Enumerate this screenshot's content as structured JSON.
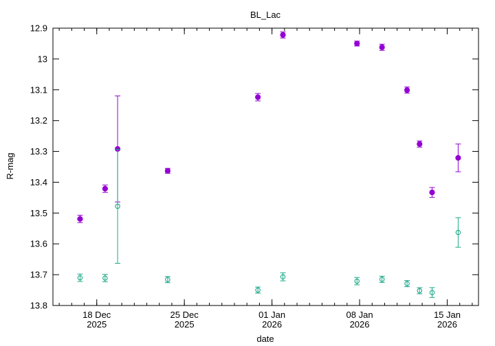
{
  "chart_data": {
    "type": "scatter",
    "title": "BL_Lac",
    "xlabel": "date",
    "ylabel": "R-mag",
    "y_inverted": true,
    "ylim": [
      12.9,
      13.8
    ],
    "xlim": [
      "2025-12-14T12:00",
      "2026-01-17T12:00"
    ],
    "grid": false,
    "y_ticks": [
      "12.9",
      "13",
      "13.1",
      "13.2",
      "13.3",
      "13.4",
      "13.5",
      "13.6",
      "13.7",
      "13.8"
    ],
    "x_ticks": [
      {
        "date": "2025-12-18",
        "line1": "18 Dec",
        "line2": "2025"
      },
      {
        "date": "2025-12-25",
        "line1": "25 Dec",
        "line2": "2025"
      },
      {
        "date": "2026-01-01",
        "line1": "01 Jan",
        "line2": "2026"
      },
      {
        "date": "2026-01-08",
        "line1": "08 Jan",
        "line2": "2026"
      },
      {
        "date": "2026-01-15",
        "line1": "15 Jan",
        "line2": "2026"
      }
    ],
    "series": [
      {
        "color": "#9400d3",
        "marker": "filled-circle",
        "points": [
          {
            "x": "2025-12-16T16:00",
            "y": 13.519,
            "err": 0.012
          },
          {
            "x": "2025-12-18T16:00",
            "y": 13.421,
            "err": 0.012
          },
          {
            "x": "2025-12-19T16:00",
            "y": 13.292,
            "err": 0.172
          },
          {
            "x": "2025-12-23T16:00",
            "y": 13.363,
            "err": 0.008
          },
          {
            "x": "2025-12-30T21:00",
            "y": 13.124,
            "err": 0.012
          },
          {
            "x": "2026-01-01T21:00",
            "y": 12.922,
            "err": 0.01
          },
          {
            "x": "2026-01-07T19:00",
            "y": 12.95,
            "err": 0.008
          },
          {
            "x": "2026-01-09T19:00",
            "y": 12.962,
            "err": 0.01
          },
          {
            "x": "2026-01-11T19:00",
            "y": 13.101,
            "err": 0.01
          },
          {
            "x": "2026-01-12T19:00",
            "y": 13.276,
            "err": 0.01
          },
          {
            "x": "2026-01-13T19:00",
            "y": 13.433,
            "err": 0.016
          },
          {
            "x": "2026-01-15T21:00",
            "y": 13.321,
            "err": 0.045
          }
        ]
      },
      {
        "color": "#1aa887",
        "marker": "open-circle",
        "points": [
          {
            "x": "2025-12-16T16:00",
            "y": 13.71,
            "err": 0.012
          },
          {
            "x": "2025-12-18T16:00",
            "y": 13.711,
            "err": 0.012
          },
          {
            "x": "2025-12-19T16:00",
            "y": 13.478,
            "err": 0.185
          },
          {
            "x": "2025-12-23T16:00",
            "y": 13.716,
            "err": 0.01
          },
          {
            "x": "2025-12-30T21:00",
            "y": 13.75,
            "err": 0.01
          },
          {
            "x": "2026-01-01T21:00",
            "y": 13.707,
            "err": 0.013
          },
          {
            "x": "2026-01-07T19:00",
            "y": 13.721,
            "err": 0.012
          },
          {
            "x": "2026-01-09T19:00",
            "y": 13.715,
            "err": 0.01
          },
          {
            "x": "2026-01-11T19:00",
            "y": 13.729,
            "err": 0.01
          },
          {
            "x": "2026-01-12T19:00",
            "y": 13.752,
            "err": 0.01
          },
          {
            "x": "2026-01-13T19:00",
            "y": 13.758,
            "err": 0.016
          },
          {
            "x": "2026-01-15T21:00",
            "y": 13.563,
            "err": 0.048
          }
        ]
      }
    ]
  }
}
